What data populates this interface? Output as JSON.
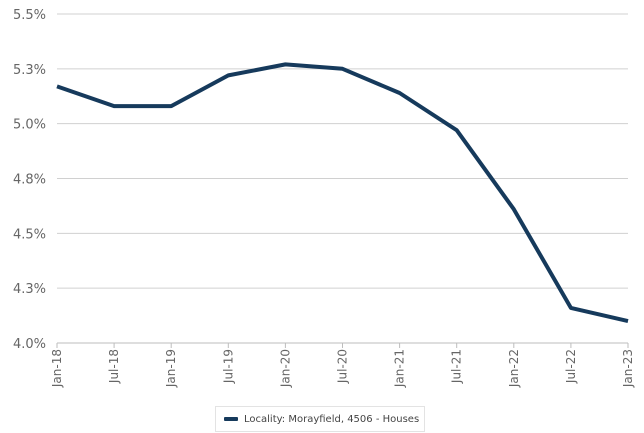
{
  "chart_data": {
    "type": "line",
    "title": "",
    "xlabel": "",
    "ylabel": "",
    "x": [
      "Jan-18",
      "Jul-18",
      "Jan-19",
      "Jul-19",
      "Jan-20",
      "Jul-20",
      "Jan-21",
      "Jul-21",
      "Jan-22",
      "Jul-22",
      "Jan-23"
    ],
    "yticks": [
      "4.0%",
      "4.3%",
      "4.5%",
      "4.8%",
      "5.0%",
      "5.3%",
      "5.5%"
    ],
    "ylim": [
      4.0,
      5.5
    ],
    "grid": true,
    "legend_position": "bottom",
    "series": [
      {
        "name": "Locality: Morayfield, 4506 - Houses",
        "color": "#163a5c",
        "values": [
          5.17,
          5.08,
          5.08,
          5.22,
          5.27,
          5.25,
          5.14,
          4.97,
          4.61,
          4.16,
          4.1
        ]
      }
    ]
  }
}
